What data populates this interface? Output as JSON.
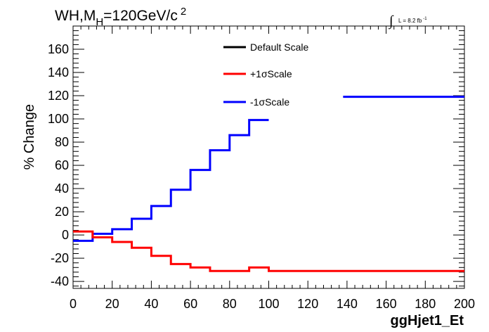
{
  "chart_data": {
    "type": "line",
    "title": "WH,M",
    "title_sub": "H",
    "title_rest": "=120GeV/c",
    "title_sup": "2",
    "lumi_integral": "∫",
    "lumi_text": "L = 8.2 fb",
    "lumi_sup": "-1",
    "xlabel": "ggHjet1_Et",
    "ylabel": "% Change",
    "xlim": [
      0,
      200
    ],
    "ylim": [
      -46,
      180
    ],
    "x_ticks": [
      "0",
      "20",
      "40",
      "60",
      "80",
      "100",
      "120",
      "140",
      "160",
      "180",
      "200"
    ],
    "y_ticks": [
      "-40",
      "-20",
      "0",
      "20",
      "40",
      "60",
      "80",
      "100",
      "120",
      "140",
      "160"
    ],
    "legend": [
      {
        "label": "Default Scale",
        "color": "#000000"
      },
      {
        "label": "+1σScale",
        "color": "#ff0000"
      },
      {
        "label": "-1σScale",
        "color": "#0000ff"
      }
    ],
    "series": [
      {
        "name": "-1σScale",
        "color": "#0000ff",
        "segments": [
          {
            "edges": [
              0,
              10,
              20,
              30,
              40,
              50,
              60,
              70,
              80,
              90,
              100
            ],
            "values": [
              -5,
              1,
              5,
              14,
              25,
              39,
              56,
              73,
              86,
              99
            ]
          },
          {
            "edges": [
              138,
              200
            ],
            "values": [
              119
            ]
          }
        ]
      },
      {
        "name": "+1σScale",
        "color": "#ff0000",
        "segments": [
          {
            "edges": [
              0,
              10,
              20,
              30,
              40,
              50,
              60,
              70,
              80,
              90,
              100,
              110,
              120,
              130,
              140,
              150,
              160,
              170,
              180,
              190,
              200
            ],
            "values": [
              3,
              -2,
              -6,
              -11,
              -18,
              -25,
              -28,
              -31,
              -31,
              -28,
              -31,
              -31,
              -31,
              -31,
              -31,
              -31,
              -31,
              -31,
              -31,
              -31
            ]
          }
        ]
      }
    ]
  }
}
